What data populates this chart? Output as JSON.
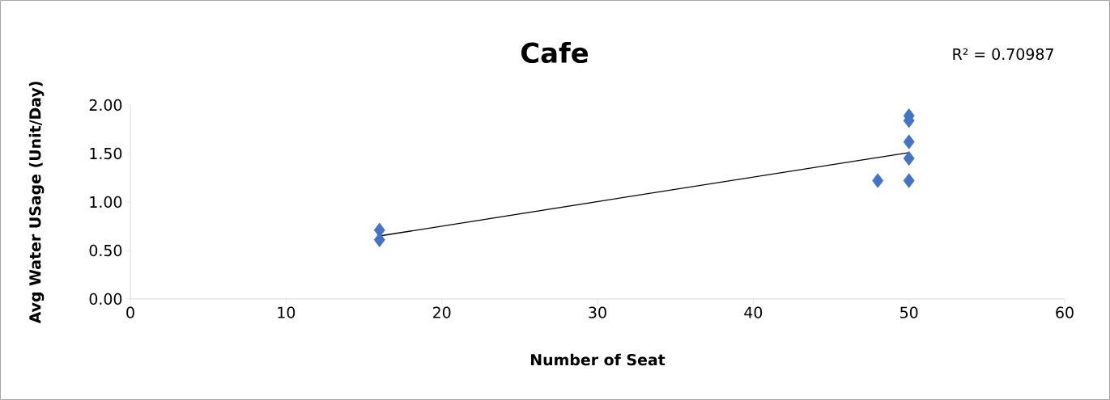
{
  "chart_data": {
    "type": "scatter",
    "title": "Cafe",
    "xlabel": "Number of Seat",
    "ylabel": "Avg Water USage (Unit/Day)",
    "annotations": [
      "R² = 0.70987"
    ],
    "marker": "diamond",
    "series": [
      {
        "color": "#4472c4",
        "x": [
          16,
          16,
          48,
          50,
          50,
          50,
          50,
          50
        ],
        "values": [
          0.71,
          0.61,
          1.22,
          1.89,
          1.84,
          1.62,
          1.45,
          1.22
        ]
      },
      {
        "type": "line",
        "color": "#000000",
        "marker": "none",
        "x": [
          16,
          50
        ],
        "values": [
          0.65,
          1.51
        ]
      }
    ],
    "xlim": [
      0,
      60
    ],
    "xticks": [
      0,
      10,
      20,
      30,
      40,
      50,
      60
    ],
    "ylim": [
      0,
      2
    ],
    "yticks": [
      {
        "value": 0,
        "label": "0.00"
      },
      {
        "value": 0.5,
        "label": "0.50"
      },
      {
        "value": 1,
        "label": "1.00"
      },
      {
        "value": 1.5,
        "label": "1.50"
      },
      {
        "value": 2,
        "label": "2.00"
      }
    ]
  }
}
